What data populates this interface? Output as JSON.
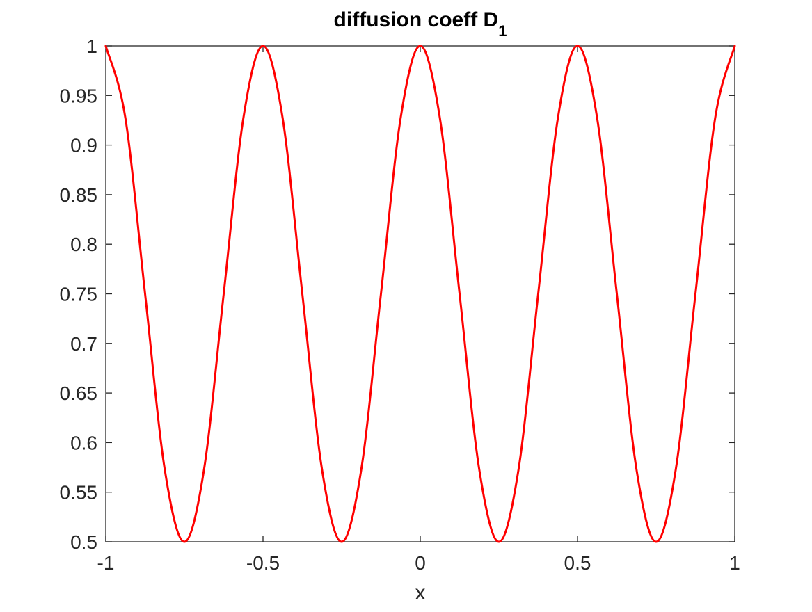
{
  "chart_data": {
    "type": "line",
    "title_main": "diffusion coeff D",
    "title_subscript": "1",
    "xlabel": "x",
    "ylabel": "",
    "xlim": [
      -1,
      1
    ],
    "ylim": [
      0.5,
      1
    ],
    "grid": false,
    "x_ticks": [
      -1,
      -0.5,
      0,
      0.5,
      1
    ],
    "x_tick_labels": [
      "-1",
      "-0.5",
      "0",
      "0.5",
      "1"
    ],
    "y_ticks": [
      0.5,
      0.55,
      0.6,
      0.65,
      0.7,
      0.75,
      0.8,
      0.85,
      0.9,
      0.95,
      1
    ],
    "y_tick_labels": [
      "0.5",
      "0.55",
      "0.6",
      "0.65",
      "0.7",
      "0.75",
      "0.8",
      "0.85",
      "0.9",
      "0.95",
      "1"
    ],
    "series": [
      {
        "color": "#ff0000",
        "x": [
          -1,
          -0.9375,
          -0.875,
          -0.8125,
          -0.75,
          -0.6875,
          -0.625,
          -0.5625,
          -0.5,
          -0.4375,
          -0.375,
          -0.3125,
          -0.25,
          -0.1875,
          -0.125,
          -0.0625,
          0,
          0.0625,
          0.125,
          0.1875,
          0.25,
          0.3125,
          0.375,
          0.4375,
          0.5,
          0.5625,
          0.625,
          0.6875,
          0.75,
          0.8125,
          0.875,
          0.9375,
          1
        ],
        "y": [
          1,
          0.927,
          0.75,
          0.573,
          0.5,
          0.573,
          0.75,
          0.927,
          1,
          0.927,
          0.75,
          0.573,
          0.5,
          0.573,
          0.75,
          0.927,
          1,
          0.927,
          0.75,
          0.573,
          0.5,
          0.573,
          0.75,
          0.927,
          1,
          0.927,
          0.75,
          0.573,
          0.5,
          0.573,
          0.75,
          0.927,
          1
        ]
      }
    ]
  },
  "colors": {
    "axes": "#262626",
    "line": "#ff0000",
    "background": "#ffffff"
  }
}
